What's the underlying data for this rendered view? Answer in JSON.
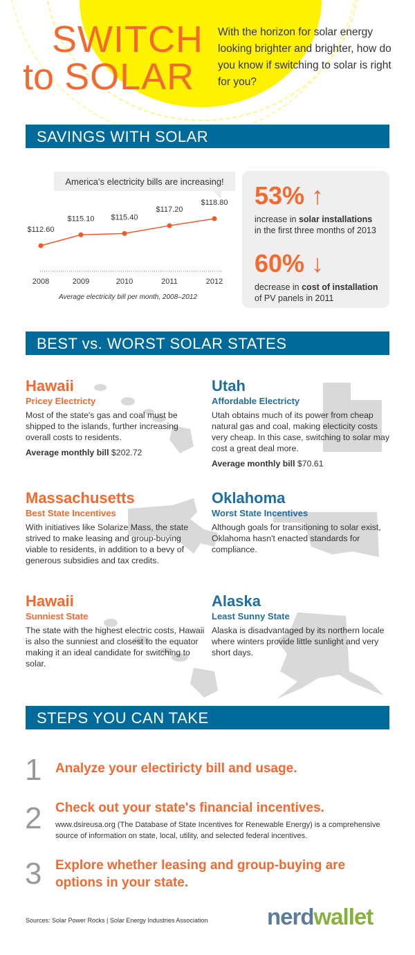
{
  "header": {
    "title_line1": "SWITCH",
    "title_to": "to",
    "title_solar": "SOLAR",
    "intro": "With the horizon for solar energy looking brighter and brighter, how do you know if switching to solar is right for you?"
  },
  "savings": {
    "banner": "SAVINGS WITH SOLAR",
    "bubble": "America's electricity bills are increasing!",
    "stat1": {
      "value": "53%",
      "arrow": "↑",
      "text_pre": "increase in ",
      "text_bold": "solar installations",
      "text_post": "in the first three months of 2013"
    },
    "stat2": {
      "value": "60%",
      "arrow": "↓",
      "text_pre": "decrease in ",
      "text_bold": "cost of installation",
      "text_post": "of PV panels in 2011"
    }
  },
  "chart_data": {
    "type": "line",
    "title": "America's electricity bills are increasing!",
    "caption": "Average electricity bill per month, 2008–2012",
    "categories": [
      "2008",
      "2009",
      "2010",
      "2011",
      "2012"
    ],
    "values": [
      112.6,
      115.1,
      115.4,
      117.2,
      118.8
    ],
    "labels": [
      "$112.60",
      "$115.10",
      "$115.40",
      "$117.20",
      "$118.80"
    ],
    "color": "#f05a28",
    "grid": false
  },
  "states": {
    "banner": "BEST vs. WORST SOLAR STATES",
    "items": [
      {
        "name": "Hawaii",
        "sub": "Pricey Electricty",
        "text": "Most of the state's gas and coal must be shipped to the islands, further increasing overall costs to residents.",
        "bill_label": "Average monthly bill",
        "bill": "$202.72"
      },
      {
        "name": "Utah",
        "sub": "Affordable Electricty",
        "text": "Utah obtains much of its power from cheap natural gas and coal, making electicity costs very cheap. In this case, switching to solar may cost a great deal more.",
        "bill_label": "Average monthly bill",
        "bill": "$70.61"
      },
      {
        "name": "Massachusetts",
        "sub": "Best State Incentives",
        "text": "With initiatives like Solarize Mass, the state strived to make leasing and group-buying viable to residents, in addition to a bevy of generous subsidies and tax credits."
      },
      {
        "name": "Oklahoma",
        "sub": "Worst State Incentives",
        "text": "Although goals for transitioning to solar exist, Oklahoma hasn't enacted standards for compliance."
      },
      {
        "name": "Hawaii",
        "sub": "Sunniest State",
        "text": "The state with the highest electric costs, Hawaii is also the sunniest and closest to the equator making it an ideal candidate for switching to solar."
      },
      {
        "name": "Alaska",
        "sub": "Least Sunny State",
        "text": "Alaska is disadvantaged by its northern locale where winters provide little sunlight and very short days."
      }
    ]
  },
  "steps": {
    "banner": "STEPS YOU CAN TAKE",
    "items": [
      {
        "num": "1",
        "text": "Analyze your electiricty bill and usage."
      },
      {
        "num": "2",
        "text": "Check out your state's financial incentives.",
        "sub": "www.dsireusa.org (The Database of State Incentives for Renewable Energy) is a comprehensive source of information on state, local, utility, and selected federal incentives."
      },
      {
        "num": "3",
        "text": "Explore whether leasing and group-buying are options in your state."
      }
    ]
  },
  "footer": {
    "sources": "Sources: Solar Power Rocks | Solar Energy Industries Association",
    "logo_nerd": "nerd",
    "logo_wallet": "wallet"
  },
  "colors": {
    "orange": "#f26a30",
    "blue": "#006a9a",
    "sun": "#fff200"
  }
}
